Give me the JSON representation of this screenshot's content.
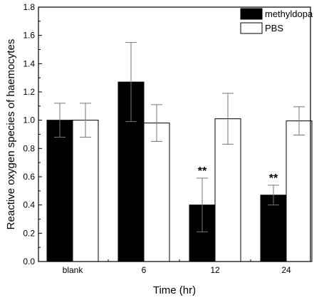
{
  "chart_data": {
    "type": "bar",
    "xlabel": "Time (hr)",
    "ylabel": "Reactive oxygen species of haemocytes",
    "ylim": [
      0,
      1.8
    ],
    "ytick_step": 0.2,
    "categories": [
      "blank",
      "6",
      "12",
      "24"
    ],
    "series": [
      {
        "name": "methyldopa",
        "color": "#000000",
        "values": [
          1.0,
          1.27,
          0.4,
          0.47
        ],
        "errors": [
          0.12,
          0.28,
          0.19,
          0.07
        ]
      },
      {
        "name": "PBS",
        "color": "#ffffff",
        "values": [
          1.0,
          0.98,
          1.01,
          0.995
        ],
        "errors": [
          0.12,
          0.13,
          0.18,
          0.1
        ]
      }
    ],
    "annotations": [
      {
        "category": "12",
        "series": "methyldopa",
        "text": "**"
      },
      {
        "category": "24",
        "series": "methyldopa",
        "text": "**"
      }
    ],
    "legend_position": "top-right",
    "grid": false
  }
}
